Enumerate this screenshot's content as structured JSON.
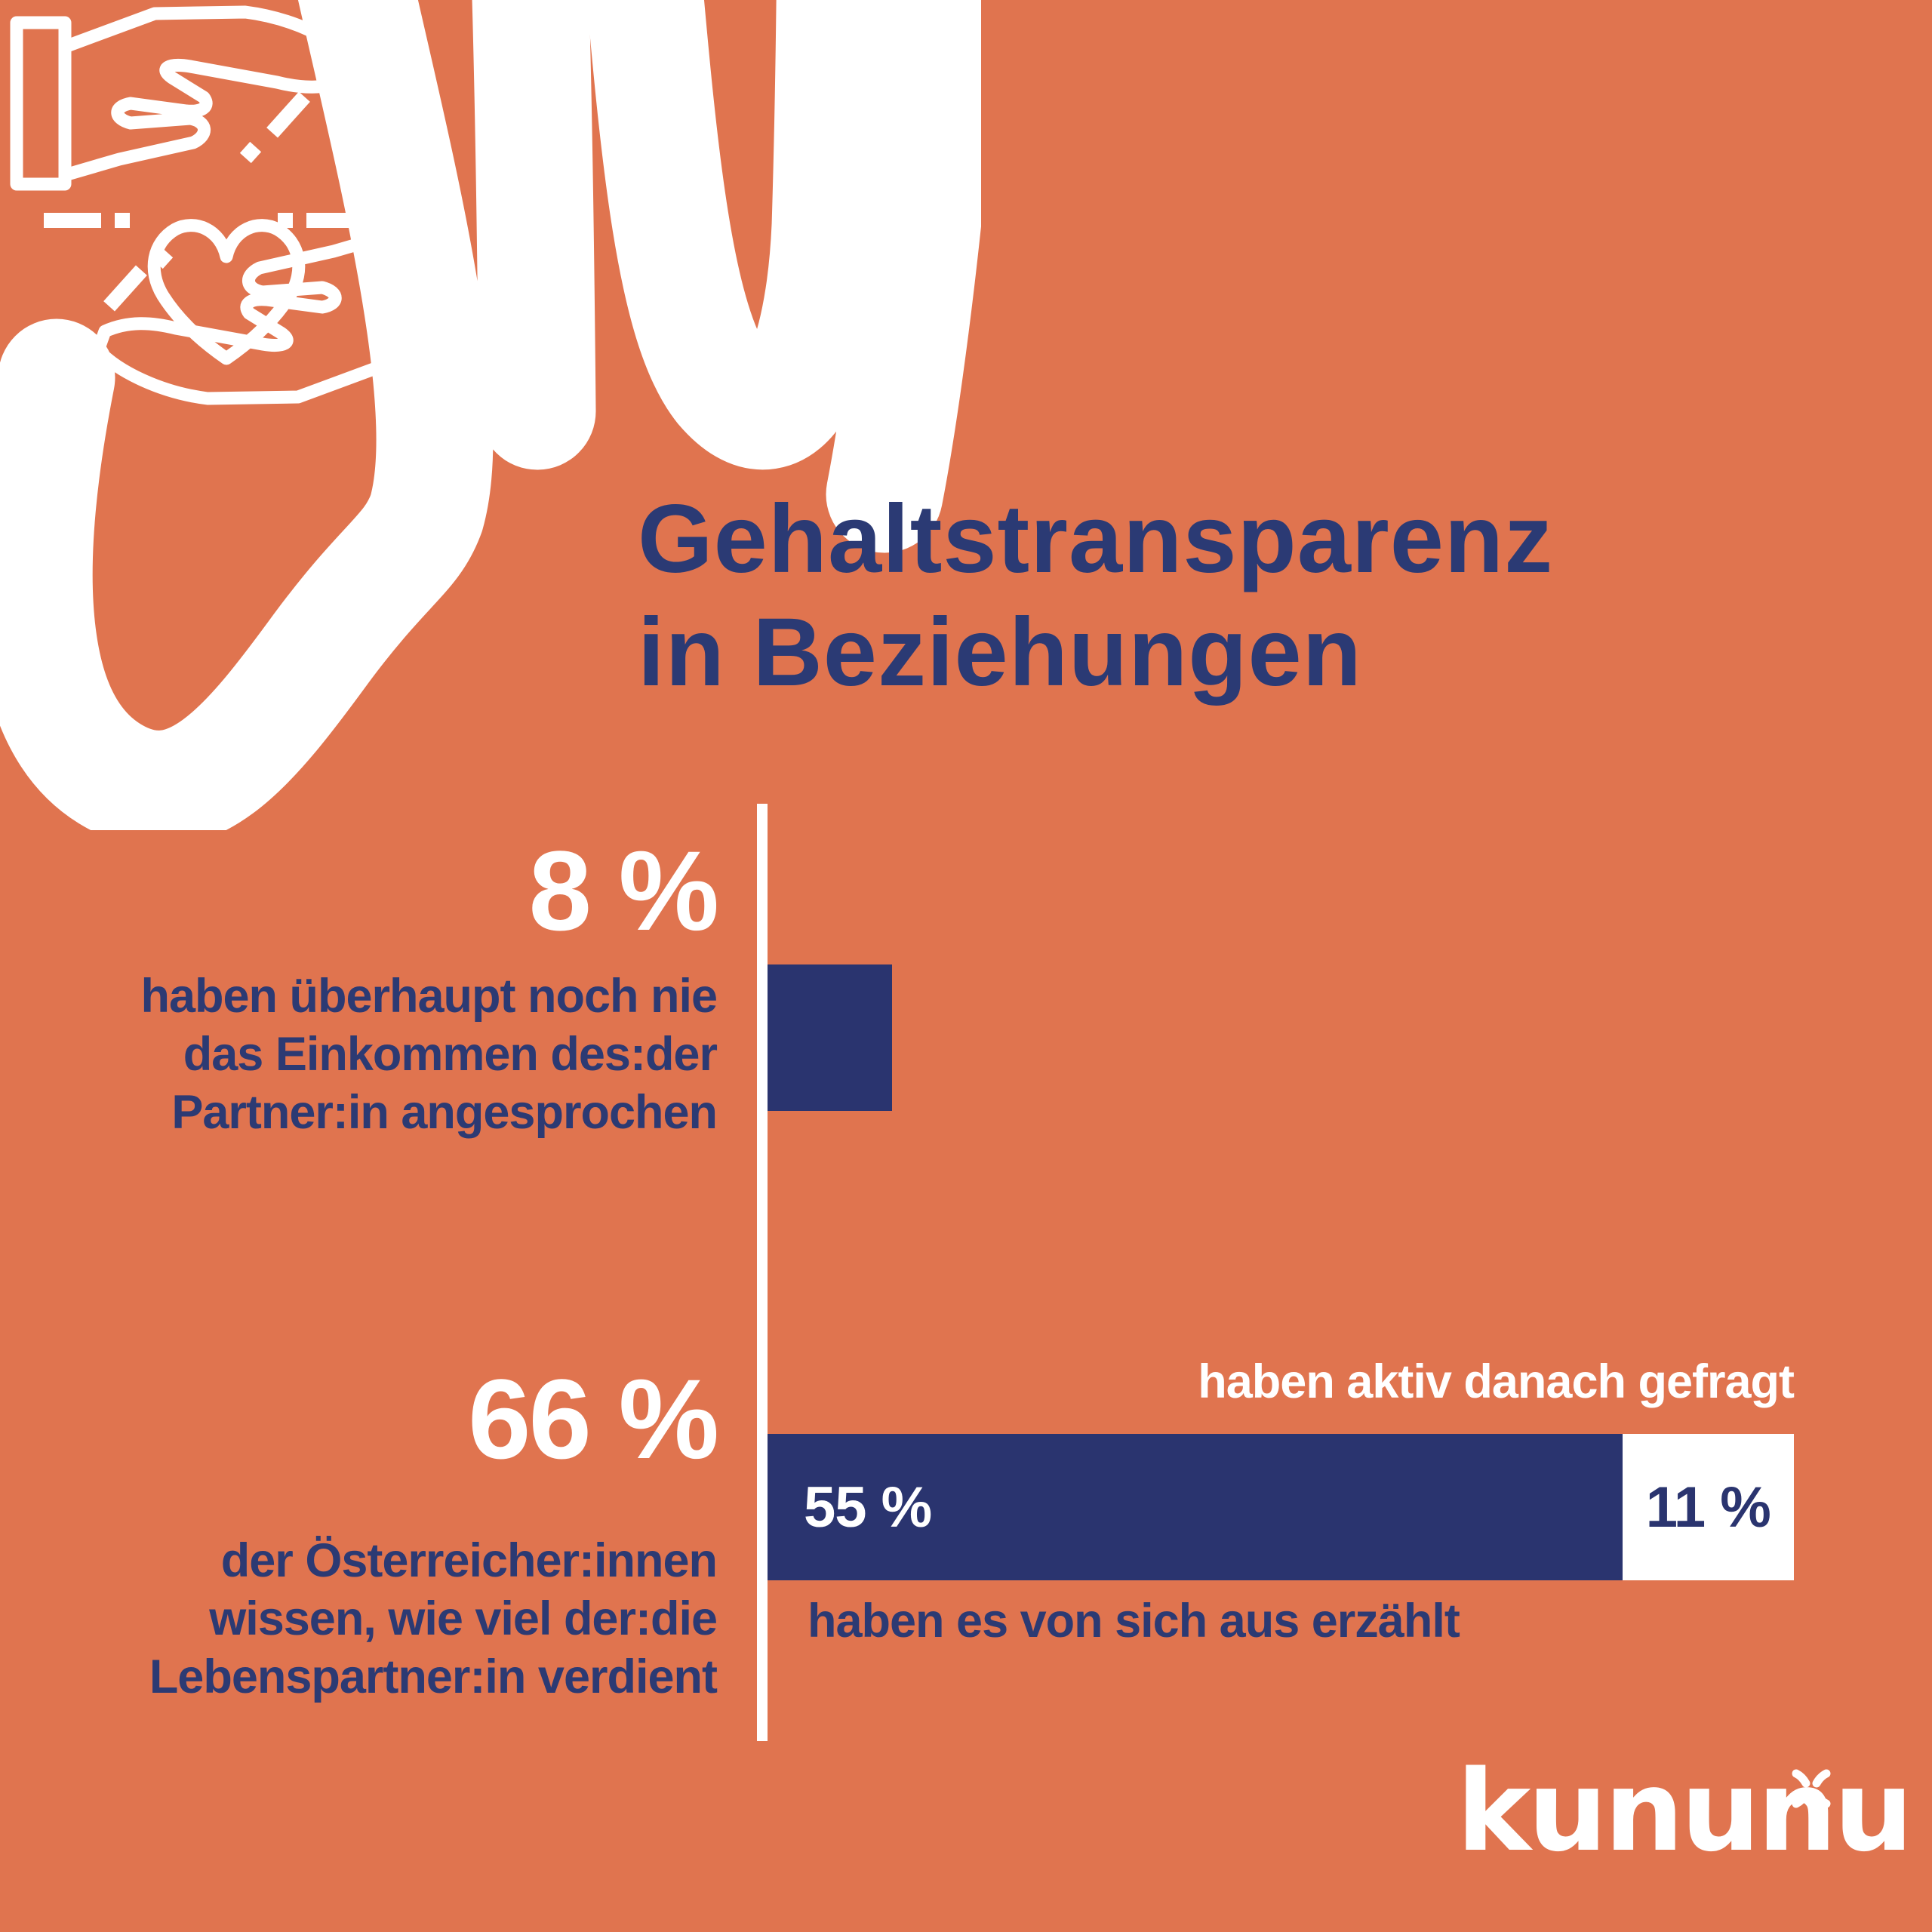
{
  "colors": {
    "background_orange": "#E0744F",
    "navy": "#2A346F",
    "text_navy": "#2C3A73",
    "white": "#FFFFFF"
  },
  "title": {
    "line1": "Gehaltstransparenz",
    "line2": "in Beziehungen"
  },
  "icon": {
    "name": "hands-exchange-heart-icon"
  },
  "chart_data": {
    "type": "bar",
    "orientation": "horizontal",
    "title": "Gehaltstransparenz in Beziehungen",
    "axis": "white vertical baseline at left of bars",
    "grid": false,
    "unit": "%",
    "rows": [
      {
        "total": 8,
        "total_label": "8 %",
        "category_lines": [
          "haben überhaupt noch nie",
          "das Einkommen des:der",
          "Partner:in angesprochen"
        ],
        "segments": [
          {
            "value": 8,
            "label": "",
            "color": "#2A346F"
          }
        ]
      },
      {
        "total": 66,
        "total_label": "66 %",
        "category_lines": [
          "der Österreicher:innen",
          "wissen, wie viel der:die",
          "Lebenspartner:in verdient"
        ],
        "segments": [
          {
            "value": 55,
            "label": "55 %",
            "annotation": "haben es von sich aus erzählt",
            "color": "#2A346F"
          },
          {
            "value": 11,
            "label": "11 %",
            "annotation": "haben aktiv danach gefragt",
            "color": "#FFFFFF"
          }
        ]
      }
    ]
  },
  "logo": {
    "text": "kununu"
  }
}
